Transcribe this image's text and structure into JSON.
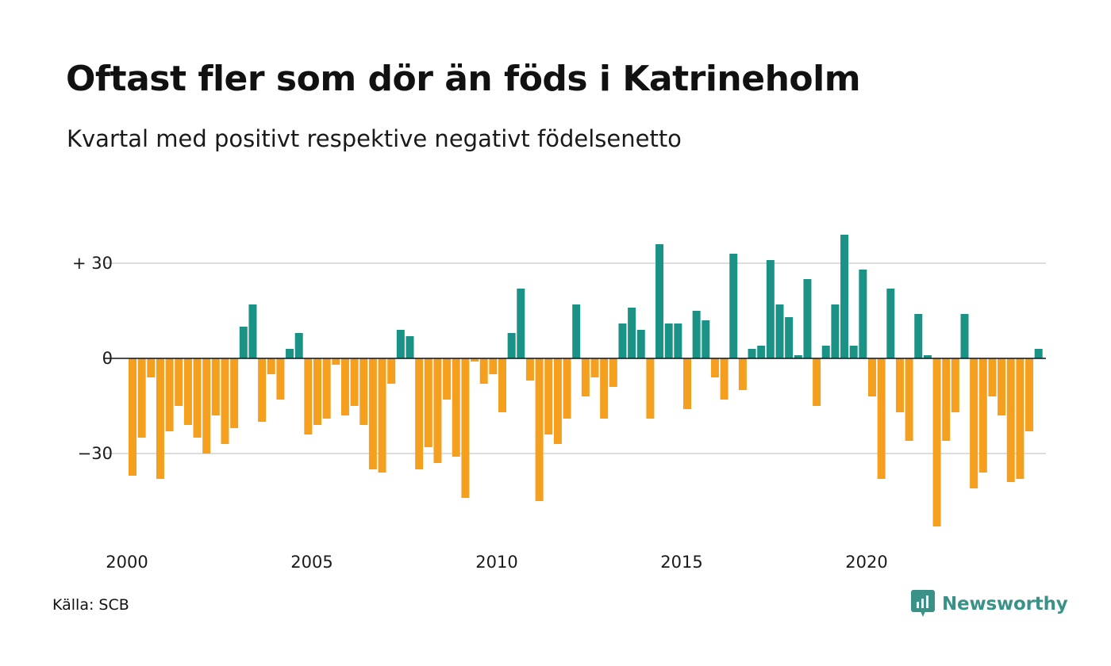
{
  "title": "Oftast fler som dör än föds i Katrineholm",
  "subtitle": "Kvartal med positivt respektive negativt födelsenetto",
  "source": "Källa: SCB",
  "logo": {
    "text": "Newsworthy",
    "icon": "newsworthy-logo-icon"
  },
  "colors": {
    "positive": "#1a9386",
    "negative": "#f59f1f",
    "grid": "#dddddd",
    "zero_line": "#111111"
  },
  "chart_data": {
    "type": "bar",
    "title": "Oftast fler som dör än föds i Katrineholm",
    "subtitle": "Kvartal med positivt respektive negativt födelsenetto",
    "xlabel": "",
    "ylabel": "",
    "x_start": "2000 Q1",
    "x_ticks": [
      "2000",
      "2005",
      "2010",
      "2015",
      "2020"
    ],
    "y_ticks": [
      {
        "value": 30,
        "label": "+ 30"
      },
      {
        "value": 0,
        "label": "0"
      },
      {
        "value": -30,
        "label": "−30"
      }
    ],
    "ylim": [
      -55,
      43
    ],
    "grid": true,
    "legend": "none",
    "values": [
      -37,
      -25,
      -6,
      -38,
      -23,
      -15,
      -21,
      -25,
      -30,
      -18,
      -27,
      -22,
      10,
      17,
      -20,
      -5,
      -13,
      3,
      8,
      -24,
      -21,
      -19,
      -2,
      -18,
      -15,
      -21,
      -35,
      -36,
      -8,
      9,
      7,
      -35,
      -28,
      -33,
      -13,
      -31,
      -44,
      -1,
      -8,
      -5,
      -17,
      8,
      22,
      -7,
      -45,
      -24,
      -27,
      -19,
      17,
      -12,
      -6,
      -19,
      -9,
      11,
      16,
      9,
      -19,
      36,
      11,
      11,
      -16,
      15,
      12,
      -6,
      -13,
      33,
      -10,
      3,
      4,
      31,
      17,
      13,
      1,
      25,
      -15,
      4,
      17,
      39,
      4,
      28,
      -12,
      -38,
      22,
      -17,
      -26,
      14,
      1,
      -53,
      -26,
      -17,
      14,
      -41,
      -36,
      -12,
      -18,
      -39,
      -38,
      -23,
      3
    ]
  }
}
